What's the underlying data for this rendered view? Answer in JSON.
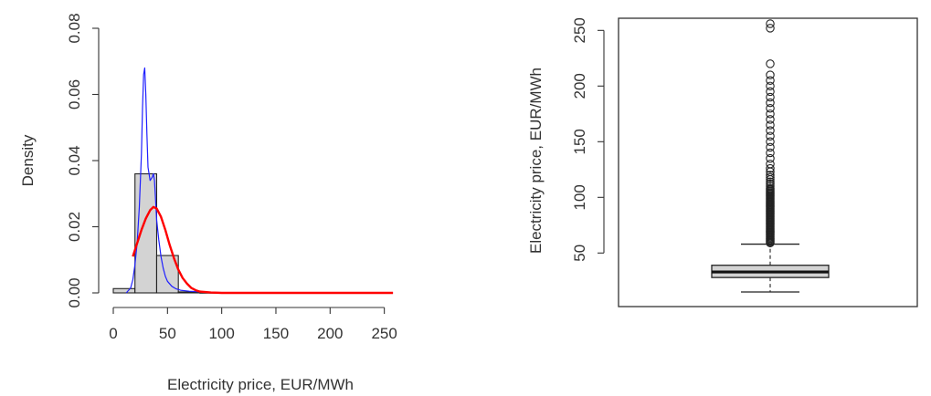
{
  "chart_data": [
    {
      "type": "histogram",
      "xlabel": "Electricity price, EUR/MWh",
      "ylabel": "Density",
      "xlim": [
        0,
        260
      ],
      "ylim": [
        0,
        0.08
      ],
      "xticks": [
        "0",
        "50",
        "100",
        "150",
        "200",
        "250"
      ],
      "yticks": [
        "0.00",
        "0.02",
        "0.04",
        "0.06",
        "0.08"
      ],
      "grid": false,
      "bins": [
        {
          "x0": 0,
          "x1": 20,
          "density": 0.0013
        },
        {
          "x0": 20,
          "x1": 40,
          "density": 0.036
        },
        {
          "x0": 40,
          "x1": 60,
          "density": 0.0113
        },
        {
          "x0": 60,
          "x1": 80,
          "density": 0.0003
        },
        {
          "x0": 80,
          "x1": 100,
          "density": 0.0001
        }
      ],
      "series": [
        {
          "kind": "kernel-density",
          "color": "#1f1fff",
          "x": [
            12,
            16,
            18,
            20,
            22,
            24,
            26,
            27,
            28,
            29,
            30,
            31,
            32,
            34,
            36,
            37,
            38,
            39,
            40,
            42,
            44,
            46,
            48,
            50,
            54,
            58,
            62,
            70,
            80,
            90,
            100,
            120,
            150,
            200,
            258
          ],
          "y": [
            0.0,
            0.0015,
            0.004,
            0.0085,
            0.015,
            0.026,
            0.042,
            0.056,
            0.066,
            0.068,
            0.06,
            0.048,
            0.038,
            0.034,
            0.035,
            0.036,
            0.034,
            0.028,
            0.022,
            0.016,
            0.011,
            0.0075,
            0.005,
            0.0035,
            0.002,
            0.0012,
            0.0008,
            0.0005,
            0.0003,
            0.0002,
            0.0001,
            5e-05,
            2e-05,
            0.0,
            0.0
          ]
        },
        {
          "kind": "normal-fit",
          "color": "#ff0000",
          "x": [
            18,
            22,
            26,
            30,
            34,
            37,
            40,
            44,
            48,
            52,
            56,
            60,
            64,
            68,
            72,
            76,
            80,
            90,
            100,
            120,
            150,
            200,
            258
          ],
          "y": [
            0.011,
            0.015,
            0.019,
            0.0225,
            0.025,
            0.026,
            0.0255,
            0.023,
            0.019,
            0.0145,
            0.0105,
            0.007,
            0.0045,
            0.0028,
            0.0015,
            0.0008,
            0.0004,
            0.0001,
            0.0,
            0.0,
            0.0,
            0.0,
            0.0
          ]
        }
      ]
    },
    {
      "type": "boxplot",
      "ylabel": "Electricity price, EUR/MWh",
      "ylim": [
        12,
        262
      ],
      "yticks": [
        "50",
        "100",
        "150",
        "200",
        "250"
      ],
      "grid": false,
      "box": {
        "whisker_low": 15,
        "q1": 28,
        "median": 33,
        "q3": 39,
        "whisker_high": 58
      },
      "outliers": [
        59,
        60,
        61,
        62,
        63,
        64,
        65,
        66,
        67,
        68,
        69,
        70,
        71,
        72,
        73,
        74,
        75,
        76,
        77,
        78,
        79,
        80,
        81,
        82,
        83,
        84,
        85,
        86,
        87,
        88,
        89,
        90,
        91,
        92,
        93,
        94,
        95,
        96,
        97,
        98,
        99,
        100,
        101,
        102,
        103,
        104,
        105,
        106,
        107,
        108,
        110,
        112,
        114,
        116,
        118,
        120,
        123,
        126,
        130,
        135,
        140,
        145,
        150,
        155,
        160,
        165,
        170,
        175,
        180,
        185,
        190,
        195,
        200,
        205,
        210,
        220,
        252,
        256
      ]
    }
  ]
}
